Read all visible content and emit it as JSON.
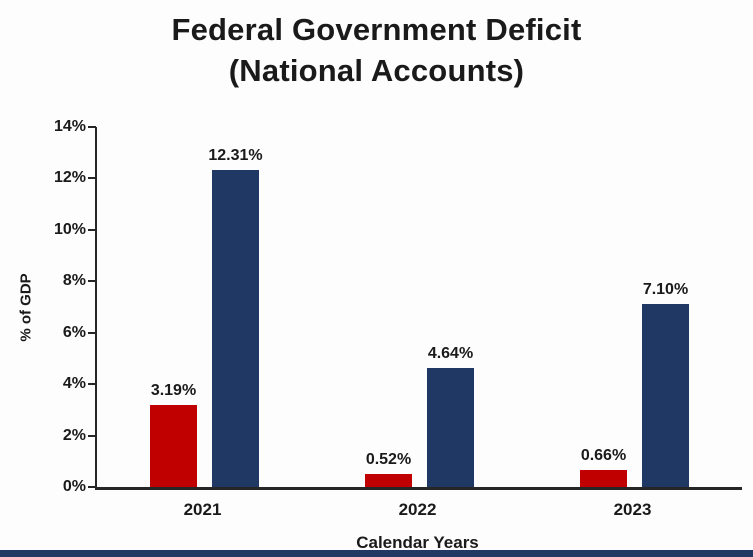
{
  "title": {
    "line1": "Federal Government Deficit",
    "line2": "(National Accounts)"
  },
  "chart_data": {
    "type": "bar",
    "categories": [
      "2021",
      "2022",
      "2023"
    ],
    "series": [
      {
        "name": "red",
        "color": "#c00000",
        "values": [
          3.19,
          0.52,
          0.66
        ]
      },
      {
        "name": "navy",
        "color": "#1f3864",
        "values": [
          12.31,
          4.64,
          7.1
        ]
      }
    ],
    "value_labels": [
      [
        "3.19%",
        "12.31%"
      ],
      [
        "0.52%",
        "4.64%"
      ],
      [
        "0.66%",
        "7.10%"
      ]
    ],
    "title": "Federal Government Deficit (National Accounts)",
    "xlabel": "Calendar Years",
    "ylabel": "% of GDP",
    "ylim": [
      0,
      14
    ],
    "yticks": [
      "0%",
      "2%",
      "4%",
      "6%",
      "8%",
      "10%",
      "12%",
      "14%"
    ],
    "grid": false,
    "legend_position": "none"
  },
  "colors": {
    "red": "#c00000",
    "navy": "#1f3864",
    "axis": "#262626"
  }
}
